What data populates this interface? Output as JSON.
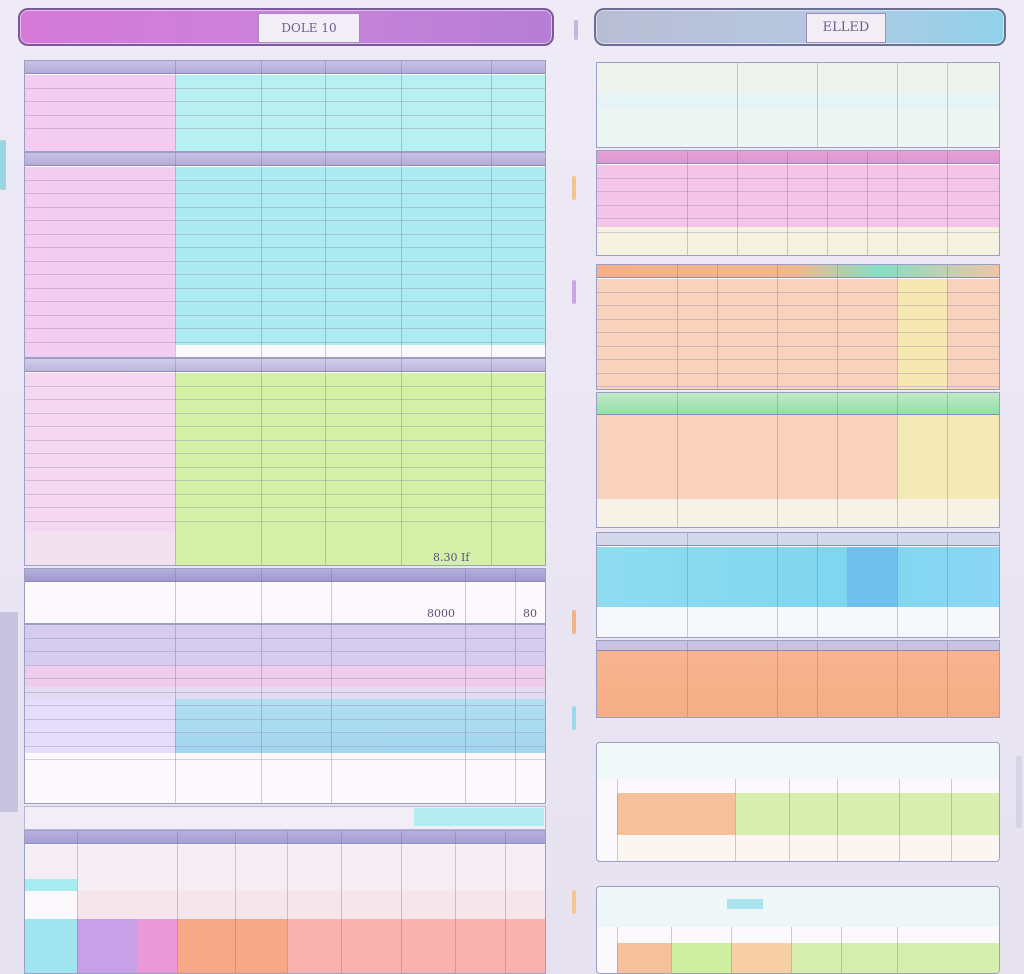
{
  "left": {
    "title_caption": "",
    "title_badge": "DOLE  10",
    "title_end": "",
    "sheets": [
      {
        "id": "s1",
        "rows": [
          {
            "label": "",
            "v1": "",
            "v2": "",
            "v3": "",
            "v4": ""
          },
          {
            "label": "",
            "v1": "",
            "v2": "",
            "v3": "",
            "v4": ""
          },
          {
            "label": "",
            "v1": "",
            "v2": "",
            "v3": "",
            "v4": ""
          },
          {
            "label": "",
            "v1": "",
            "v2": "",
            "v3": "",
            "v4": ""
          }
        ]
      }
    ],
    "totals": {
      "t1": "8.30 If",
      "t2": "8000",
      "t3": "80"
    }
  },
  "right": {
    "title_caption": "",
    "title_badge": "ELLED",
    "title_end": ""
  },
  "colors": {
    "pink": "#f2c3ec",
    "cyan": "#a9ecf0",
    "lime": "#cfeea0",
    "lavender": "#cbc3ee",
    "blue": "#9fd4ee",
    "peach": "#f8cfb4",
    "orange": "#f6b489",
    "yellow": "#f3ecaa",
    "green": "#9ee3b0",
    "sky": "#7fdcf0"
  }
}
